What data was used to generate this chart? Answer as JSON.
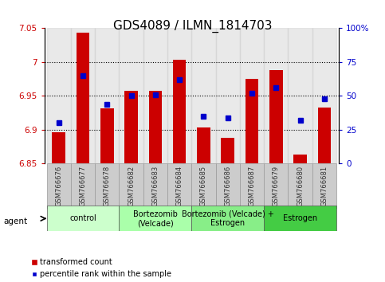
{
  "title": "GDS4089 / ILMN_1814703",
  "samples": [
    "GSM766676",
    "GSM766677",
    "GSM766678",
    "GSM766682",
    "GSM766683",
    "GSM766684",
    "GSM766685",
    "GSM766686",
    "GSM766687",
    "GSM766679",
    "GSM766680",
    "GSM766681"
  ],
  "transformed_count": [
    6.896,
    7.043,
    6.932,
    6.957,
    6.958,
    7.003,
    6.903,
    6.888,
    6.975,
    6.988,
    6.863,
    6.933
  ],
  "percentile_rank": [
    30,
    65,
    44,
    50,
    51,
    62,
    35,
    34,
    52,
    56,
    32,
    48
  ],
  "ylim_left": [
    6.85,
    7.05
  ],
  "ylim_right": [
    0,
    100
  ],
  "yticks_left": [
    6.85,
    6.9,
    6.95,
    7.0,
    7.05
  ],
  "yticks_right": [
    0,
    25,
    50,
    75,
    100
  ],
  "ytick_labels_left": [
    "6.85",
    "6.9",
    "6.95",
    "7",
    "7.05"
  ],
  "ytick_labels_right": [
    "0",
    "25",
    "50",
    "75",
    "100%"
  ],
  "groups": [
    {
      "label": "control",
      "start": 0,
      "end": 3,
      "color": "#ccffcc"
    },
    {
      "label": "Bortezomib\n(Velcade)",
      "start": 3,
      "end": 6,
      "color": "#aaffaa"
    },
    {
      "label": "Bortezomib (Velcade) +\nEstrogen",
      "start": 6,
      "end": 9,
      "color": "#88ee88"
    },
    {
      "label": "Estrogen",
      "start": 9,
      "end": 12,
      "color": "#44cc44"
    }
  ],
  "bar_color": "#cc0000",
  "dot_color": "#0000cc",
  "bar_width": 0.55,
  "bar_base": 6.85,
  "legend_items": [
    "transformed count",
    "percentile rank within the sample"
  ],
  "legend_colors": [
    "#cc0000",
    "#0000cc"
  ],
  "agent_label": "agent",
  "title_fontsize": 11,
  "tick_fontsize": 7.5,
  "sample_fontsize": 6,
  "group_fontsize": 7,
  "legend_fontsize": 7
}
